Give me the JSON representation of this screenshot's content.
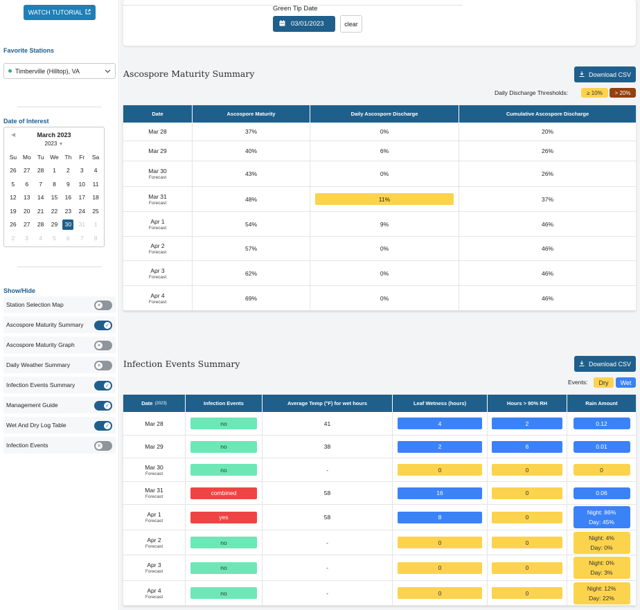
{
  "sidebar": {
    "tutorial_label": "WATCH TUTORIAL",
    "favorite_title": "Favorite Stations",
    "station": "Timberville (Hilltop), VA",
    "date_title": "Date of Interest",
    "calendar": {
      "month": "March 2023",
      "year": "2023",
      "weekdays": [
        "Su",
        "Mo",
        "Tu",
        "We",
        "Th",
        "Fr",
        "Sa"
      ],
      "days": [
        {
          "d": "26",
          "o": false
        },
        {
          "d": "27",
          "o": false
        },
        {
          "d": "28",
          "o": false
        },
        {
          "d": "1",
          "o": false
        },
        {
          "d": "2",
          "o": false
        },
        {
          "d": "3",
          "o": false
        },
        {
          "d": "4",
          "o": false
        },
        {
          "d": "5",
          "o": false
        },
        {
          "d": "6",
          "o": false
        },
        {
          "d": "7",
          "o": false
        },
        {
          "d": "8",
          "o": false
        },
        {
          "d": "9",
          "o": false
        },
        {
          "d": "10",
          "o": false
        },
        {
          "d": "11",
          "o": false
        },
        {
          "d": "12",
          "o": false
        },
        {
          "d": "13",
          "o": false
        },
        {
          "d": "14",
          "o": false
        },
        {
          "d": "15",
          "o": false
        },
        {
          "d": "16",
          "o": false
        },
        {
          "d": "17",
          "o": false
        },
        {
          "d": "18",
          "o": false
        },
        {
          "d": "19",
          "o": false
        },
        {
          "d": "20",
          "o": false
        },
        {
          "d": "21",
          "o": false
        },
        {
          "d": "22",
          "o": false
        },
        {
          "d": "23",
          "o": false
        },
        {
          "d": "24",
          "o": false
        },
        {
          "d": "25",
          "o": false
        },
        {
          "d": "26",
          "o": false
        },
        {
          "d": "27",
          "o": false
        },
        {
          "d": "28",
          "o": false
        },
        {
          "d": "29",
          "o": false
        },
        {
          "d": "30",
          "o": false,
          "sel": true
        },
        {
          "d": "31",
          "o": true
        },
        {
          "d": "1",
          "o": true
        },
        {
          "d": "2",
          "o": true
        },
        {
          "d": "3",
          "o": true
        },
        {
          "d": "4",
          "o": true
        },
        {
          "d": "5",
          "o": true
        },
        {
          "d": "6",
          "o": true
        },
        {
          "d": "7",
          "o": true
        },
        {
          "d": "8",
          "o": true
        }
      ]
    },
    "showhide_title": "Show/Hide",
    "toggles": [
      {
        "label": "Station Selection Map",
        "on": false
      },
      {
        "label": "Ascospore Maturity Summary",
        "on": true
      },
      {
        "label": "Ascospore Maturity Graph",
        "on": false
      },
      {
        "label": "Daily Weather Summary",
        "on": false
      },
      {
        "label": "Infection Events Summary",
        "on": true
      },
      {
        "label": "Management Guide",
        "on": true
      },
      {
        "label": "Wet And Dry Log Table",
        "on": true
      },
      {
        "label": "Infection Events",
        "on": false
      }
    ]
  },
  "green_tip": {
    "label": "Green Tip Date",
    "date": "03/01/2023",
    "clear_label": "clear"
  },
  "ascospore": {
    "title": "Ascospore Maturity Summary",
    "download_label": "Download CSV",
    "thresholds_label": "Daily Discharge Thresholds:",
    "threshold_low": "≥ 10%",
    "threshold_high": "> 20%",
    "colors": {
      "low": "#fcd34d",
      "high": "#92400e"
    },
    "headers": [
      "Date",
      "Ascospore Maturity",
      "Daily Ascospore Discharge",
      "Cumulative Ascospore Discharge"
    ],
    "rows": [
      {
        "date": "Mar 28",
        "sub": "",
        "maturity": "37%",
        "daily": "0%",
        "cum": "20%",
        "hl": false
      },
      {
        "date": "Mar 29",
        "sub": "",
        "maturity": "40%",
        "daily": "6%",
        "cum": "26%",
        "hl": false
      },
      {
        "date": "Mar 30",
        "sub": "Forecast",
        "maturity": "43%",
        "daily": "0%",
        "cum": "26%",
        "hl": false
      },
      {
        "date": "Mar 31",
        "sub": "Forecast",
        "maturity": "48%",
        "daily": "11%",
        "cum": "37%",
        "hl": true
      },
      {
        "date": "Apr 1",
        "sub": "Forecast",
        "maturity": "54%",
        "daily": "9%",
        "cum": "46%",
        "hl": false
      },
      {
        "date": "Apr 2",
        "sub": "Forecast",
        "maturity": "57%",
        "daily": "0%",
        "cum": "46%",
        "hl": false
      },
      {
        "date": "Apr 3",
        "sub": "Forecast",
        "maturity": "62%",
        "daily": "0%",
        "cum": "46%",
        "hl": false
      },
      {
        "date": "Apr 4",
        "sub": "Forecast",
        "maturity": "69%",
        "daily": "0%",
        "cum": "46%",
        "hl": false
      }
    ]
  },
  "infection": {
    "title": "Infection Events Summary",
    "download_label": "Download CSV",
    "events_label": "Events:",
    "dry_label": "Dry",
    "wet_label": "Wet",
    "headers": [
      "Date",
      "Infection Events",
      "Average Temp (°F) for wet hours",
      "Leaf Wetness (hours)",
      "Hours > 90% RH",
      "Rain Amount"
    ],
    "date_year": "(2023)",
    "rows": [
      {
        "date": "Mar 28",
        "sub": "",
        "event": "no",
        "ev": "g",
        "temp": "41",
        "leaf": "4",
        "leafc": "b",
        "rh": "2",
        "rhc": "b",
        "rain": [
          "0.12"
        ],
        "rainc": "b"
      },
      {
        "date": "Mar 29",
        "sub": "",
        "event": "no",
        "ev": "g",
        "temp": "38",
        "leaf": "2",
        "leafc": "b",
        "rh": "6",
        "rhc": "b",
        "rain": [
          "0.01"
        ],
        "rainc": "b"
      },
      {
        "date": "Mar 30",
        "sub": "Forecast",
        "event": "no",
        "ev": "g",
        "temp": "-",
        "leaf": "0",
        "leafc": "y",
        "rh": "0",
        "rhc": "y",
        "rain": [
          "0"
        ],
        "rainc": "y"
      },
      {
        "date": "Mar 31",
        "sub": "Forecast",
        "event": "combined",
        "ev": "r",
        "temp": "58",
        "leaf": "16",
        "leafc": "b",
        "rh": "0",
        "rhc": "y",
        "rain": [
          "0.06"
        ],
        "rainc": "b"
      },
      {
        "date": "Apr 1",
        "sub": "Forecast",
        "event": "yes",
        "ev": "r",
        "temp": "58",
        "leaf": "8",
        "leafc": "b",
        "rh": "0",
        "rhc": "y",
        "rain": [
          "Night: 86%",
          "Day: 45%"
        ],
        "rainc": "b"
      },
      {
        "date": "Apr 2",
        "sub": "Forecast",
        "event": "no",
        "ev": "g",
        "temp": "-",
        "leaf": "0",
        "leafc": "y",
        "rh": "0",
        "rhc": "y",
        "rain": [
          "Night: 4%",
          "Day: 0%"
        ],
        "rainc": "y"
      },
      {
        "date": "Apr 3",
        "sub": "Forecast",
        "event": "no",
        "ev": "g",
        "temp": "-",
        "leaf": "0",
        "leafc": "y",
        "rh": "0",
        "rhc": "y",
        "rain": [
          "Night: 0%",
          "Day: 3%"
        ],
        "rainc": "y"
      },
      {
        "date": "Apr 4",
        "sub": "Forecast",
        "event": "no",
        "ev": "g",
        "temp": "-",
        "leaf": "0",
        "leafc": "y",
        "rh": "0",
        "rhc": "y",
        "rain": [
          "Night: 12%",
          "Day: 22%"
        ],
        "rainc": "y"
      }
    ]
  }
}
